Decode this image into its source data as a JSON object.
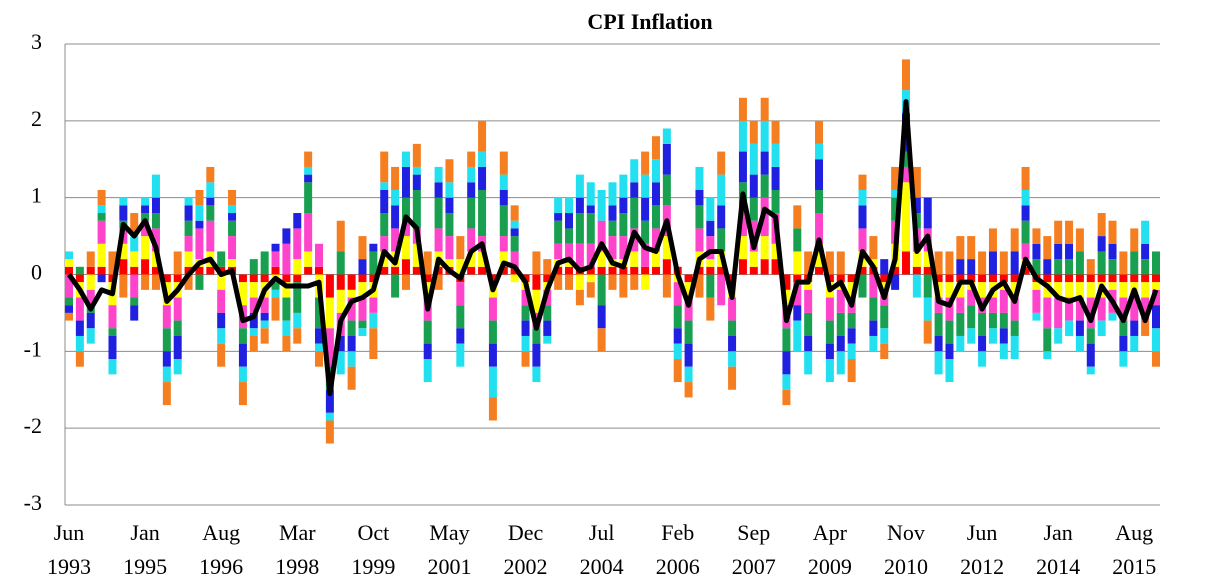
{
  "chart_data": {
    "type": "bar",
    "stacked": true,
    "title": "CPI Inflation",
    "categories": [
      "Jun 1993",
      null,
      null,
      null,
      null,
      null,
      null,
      "Jan 1995",
      null,
      null,
      null,
      null,
      null,
      null,
      "Aug 1996",
      null,
      null,
      null,
      null,
      null,
      null,
      "Mar 1998",
      null,
      null,
      null,
      null,
      null,
      null,
      "Oct 1999",
      null,
      null,
      null,
      null,
      null,
      null,
      "May 2001",
      null,
      null,
      null,
      null,
      null,
      null,
      "Dec 2002",
      null,
      null,
      null,
      null,
      null,
      null,
      "Jul 2004",
      null,
      null,
      null,
      null,
      null,
      null,
      "Feb 2006",
      null,
      null,
      null,
      null,
      null,
      null,
      "Sep 2007",
      null,
      null,
      null,
      null,
      null,
      null,
      "Apr 2009",
      null,
      null,
      null,
      null,
      null,
      null,
      "Nov 2010",
      null,
      null,
      null,
      null,
      null,
      null,
      "Jun 2012",
      null,
      null,
      null,
      null,
      null,
      null,
      "Jan 2014",
      null,
      null,
      null,
      null,
      null,
      null,
      "Aug 2015",
      null,
      null
    ],
    "ylim": [
      -3,
      3
    ],
    "yticks": [
      -3,
      -2,
      -1,
      0,
      1,
      2,
      3
    ],
    "grid": true,
    "series": [
      {
        "color": "#ff0000",
        "values": [
          0.1,
          -0.1,
          0.1,
          0.1,
          -0.1,
          0.2,
          0.1,
          0.2,
          0.1,
          -0.1,
          -0.1,
          0.1,
          0.1,
          0.1,
          0.1,
          0.1,
          -0.1,
          -0.1,
          -0.1,
          0.1,
          -0.1,
          -0.1,
          0.1,
          0.1,
          -0.3,
          -0.2,
          -0.2,
          -0.1,
          -0.1,
          0.1,
          0.1,
          0.2,
          0.1,
          -0.1,
          0.1,
          0.1,
          -0.1,
          0.1,
          0.1,
          -0.1,
          0.1,
          0.1,
          -0.1,
          -0.2,
          -0.1,
          0.1,
          0.1,
          0.1,
          0.1,
          0.1,
          0.1,
          0.1,
          0.1,
          0.1,
          0.1,
          0.2,
          0.1,
          -0.1,
          0.1,
          0.1,
          0.1,
          -0.1,
          0.2,
          0.1,
          0.2,
          0.2,
          -0.2,
          -0.1,
          -0.1,
          0.1,
          -0.1,
          -0.1,
          -0.1,
          0.1,
          0.1,
          -0.1,
          0.1,
          0.3,
          0.1,
          0.1,
          -0.1,
          -0.1,
          -0.1,
          -0.1,
          -0.1,
          -0.1,
          -0.1,
          -0.1,
          0.1,
          -0.1,
          -0.1,
          -0.1,
          -0.1,
          -0.1,
          -0.1,
          -0.1,
          -0.1,
          -0.1,
          -0.1,
          -0.1,
          -0.1
        ]
      },
      {
        "color": "#ffff00",
        "values": [
          0.1,
          -0.2,
          -0.2,
          0.3,
          -0.3,
          0.2,
          0.2,
          0.3,
          0.2,
          -0.3,
          -0.2,
          0.2,
          0.1,
          0.2,
          -0.2,
          0.1,
          -0.3,
          -0.2,
          -0.2,
          -0.1,
          -0.2,
          0.2,
          0.2,
          -0.3,
          -0.4,
          -0.3,
          -0.1,
          -0.2,
          -0.2,
          0.2,
          0.2,
          0.3,
          0.3,
          -0.2,
          0.2,
          0.1,
          0.2,
          0.2,
          0.2,
          -0.2,
          0.2,
          -0.1,
          -0.1,
          -0.3,
          -0.1,
          0.1,
          0.1,
          -0.2,
          -0.1,
          0.2,
          0.1,
          0.1,
          0.2,
          -0.2,
          0.2,
          0.3,
          -0.1,
          -0.2,
          0.2,
          0.1,
          0.2,
          -0.2,
          0.3,
          0.2,
          0.3,
          0.2,
          -0.2,
          0.3,
          -0.1,
          0.3,
          -0.2,
          -0.1,
          -0.2,
          0.2,
          0.1,
          -0.1,
          0.3,
          0.9,
          0.2,
          0.2,
          -0.2,
          -0.2,
          -0.2,
          -0.1,
          -0.2,
          -0.2,
          -0.1,
          -0.2,
          0.1,
          -0.1,
          -0.2,
          -0.2,
          -0.2,
          -0.2,
          -0.2,
          -0.2,
          -0.1,
          -0.2,
          -0.2,
          -0.2,
          -0.1
        ]
      },
      {
        "color": "#ff44cc",
        "values": [
          -0.3,
          -0.3,
          -0.2,
          0.3,
          -0.3,
          0.2,
          -0.3,
          0.2,
          0.3,
          -0.3,
          -0.3,
          0.2,
          0.4,
          0.4,
          -0.3,
          0.3,
          -0.3,
          -0.2,
          -0.2,
          0.2,
          0.4,
          0.4,
          0.5,
          0.3,
          -0.5,
          -0.3,
          -0.3,
          -0.3,
          -0.2,
          0.2,
          0.3,
          0.2,
          0.2,
          -0.3,
          0.3,
          0.3,
          -0.3,
          0.3,
          0.2,
          -0.3,
          0.2,
          0.2,
          -0.2,
          -0.2,
          -0.2,
          0.2,
          0.2,
          0.3,
          0.3,
          0.4,
          0.3,
          0.3,
          0.3,
          0.3,
          0.3,
          0.4,
          -0.3,
          -0.3,
          0.3,
          0.3,
          -0.4,
          -0.3,
          0.4,
          0.4,
          0.5,
          0.4,
          -0.3,
          -0.3,
          -0.3,
          0.4,
          -0.3,
          -0.3,
          -0.2,
          0.3,
          -0.3,
          -0.2,
          0.3,
          0.2,
          0.3,
          0.3,
          -0.2,
          -0.3,
          -0.2,
          -0.2,
          -0.2,
          -0.2,
          -0.3,
          -0.3,
          0.2,
          -0.3,
          -0.4,
          -0.4,
          -0.3,
          -0.3,
          -0.4,
          -0.3,
          -0.3,
          -0.3,
          -0.3,
          -0.3,
          -0.2
        ]
      },
      {
        "color": "#18a050",
        "values": [
          -0.1,
          0.1,
          -0.1,
          0.1,
          -0.1,
          0.1,
          -0.1,
          0.1,
          0.2,
          -0.3,
          -0.2,
          0.2,
          -0.2,
          0.2,
          0.2,
          0.2,
          -0.2,
          0.2,
          0.3,
          -0.1,
          -0.3,
          -0.4,
          0.4,
          -0.4,
          -0.3,
          0.3,
          -0.2,
          -0.1,
          0.3,
          0.3,
          -0.3,
          0.3,
          0.5,
          -0.3,
          0.4,
          0.3,
          -0.3,
          0.4,
          0.6,
          -0.3,
          0.4,
          0.2,
          -0.2,
          -0.2,
          -0.2,
          0.3,
          0.2,
          0.4,
          0.4,
          -0.4,
          0.2,
          0.3,
          0.4,
          0.3,
          0.3,
          0.4,
          -0.3,
          -0.3,
          0.3,
          -0.3,
          0.3,
          -0.2,
          0.3,
          0.3,
          0.3,
          0.3,
          -0.3,
          0.3,
          -0.3,
          0.3,
          -0.3,
          -0.3,
          -0.2,
          -0.3,
          -0.3,
          -0.3,
          0.3,
          0.2,
          0.2,
          -0.3,
          -0.3,
          -0.3,
          -0.3,
          -0.3,
          -0.3,
          -0.2,
          -0.2,
          -0.2,
          0.3,
          0.2,
          -0.3,
          0.2,
          0.2,
          0.3,
          -0.2,
          0.3,
          0.2,
          -0.2,
          0.3,
          0.2,
          0.3
        ]
      },
      {
        "color": "#2020e0",
        "values": [
          -0.1,
          -0.2,
          -0.2,
          -0.1,
          -0.3,
          0.2,
          -0.2,
          0.1,
          0.2,
          -0.2,
          -0.3,
          0.2,
          0.1,
          0.1,
          -0.2,
          0.1,
          -0.3,
          -0.2,
          -0.1,
          0.1,
          0.2,
          0.2,
          0.1,
          -0.2,
          -0.3,
          -0.2,
          -0.2,
          0.2,
          0.1,
          0.3,
          0.3,
          0.4,
          0.2,
          -0.2,
          0.2,
          0.2,
          -0.2,
          0.2,
          0.3,
          -0.3,
          0.2,
          0.1,
          -0.2,
          -0.3,
          -0.2,
          0.1,
          0.2,
          0.2,
          0.1,
          -0.3,
          0.2,
          0.2,
          0.2,
          0.3,
          0.3,
          0.4,
          -0.2,
          -0.3,
          0.2,
          0.2,
          0.3,
          -0.2,
          0.4,
          0.3,
          0.3,
          0.3,
          -0.3,
          -0.2,
          -0.2,
          0.4,
          -0.2,
          -0.2,
          -0.2,
          0.3,
          -0.2,
          0.2,
          -0.2,
          0.5,
          0.2,
          0.4,
          -0.2,
          -0.2,
          0.2,
          0.2,
          -0.2,
          0.3,
          -0.2,
          0.3,
          0.2,
          0.2,
          0.2,
          0.2,
          0.2,
          -0.2,
          -0.3,
          0.2,
          0.2,
          -0.2,
          -0.2,
          0.2,
          -0.3
        ]
      },
      {
        "color": "#22e0f0",
        "values": [
          0.1,
          -0.2,
          -0.2,
          0.1,
          -0.2,
          0.1,
          0.2,
          0.1,
          0.3,
          -0.2,
          -0.2,
          0.1,
          0.2,
          0.2,
          -0.2,
          0.1,
          -0.2,
          -0.1,
          -0.1,
          -0.1,
          -0.2,
          -0.2,
          0.1,
          -0.1,
          -0.1,
          -0.3,
          -0.2,
          -0.1,
          -0.2,
          0.1,
          0.2,
          0.2,
          0.1,
          -0.3,
          0.2,
          0.2,
          -0.3,
          0.2,
          0.2,
          -0.4,
          0.2,
          0.1,
          -0.2,
          -0.2,
          -0.1,
          0.2,
          0.2,
          0.3,
          0.3,
          0.4,
          0.3,
          0.3,
          0.3,
          0.3,
          0.3,
          0.2,
          -0.2,
          -0.2,
          0.3,
          0.3,
          0.4,
          -0.2,
          0.4,
          0.4,
          0.4,
          0.3,
          -0.2,
          -0.4,
          -0.3,
          0.2,
          -0.3,
          -0.3,
          -0.2,
          0.2,
          -0.2,
          -0.2,
          0.1,
          0.3,
          -0.3,
          -0.3,
          -0.3,
          -0.3,
          -0.2,
          -0.2,
          -0.2,
          -0.2,
          -0.2,
          -0.3,
          0.2,
          -0.1,
          -0.1,
          -0.2,
          -0.2,
          -0.2,
          -0.1,
          -0.2,
          -0.1,
          -0.2,
          -0.2,
          0.3,
          -0.3
        ]
      },
      {
        "color": "#f57f20",
        "values": [
          -0.1,
          -0.2,
          0.2,
          0.2,
          0.3,
          -0.3,
          0.3,
          -0.2,
          -0.2,
          -0.3,
          0.3,
          -0.2,
          0.2,
          0.2,
          -0.3,
          0.2,
          -0.3,
          -0.2,
          -0.2,
          -0.3,
          -0.2,
          -0.2,
          0.2,
          -0.2,
          -0.3,
          0.4,
          -0.3,
          0.3,
          -0.4,
          0.4,
          0.3,
          -0.2,
          0.3,
          0.3,
          -0.2,
          0.3,
          0.3,
          0.2,
          0.4,
          -0.3,
          0.3,
          0.2,
          -0.2,
          0.3,
          0.2,
          -0.2,
          -0.2,
          -0.2,
          -0.2,
          -0.3,
          -0.2,
          -0.3,
          -0.2,
          0.3,
          0.3,
          -0.3,
          -0.3,
          -0.2,
          -0.3,
          -0.3,
          0.3,
          -0.3,
          0.3,
          0.3,
          0.3,
          0.3,
          -0.2,
          0.3,
          0.3,
          0.3,
          0.3,
          0.3,
          -0.3,
          0.2,
          0.3,
          -0.2,
          0.3,
          0.4,
          0.4,
          -0.3,
          0.3,
          0.3,
          0.3,
          0.3,
          0.3,
          0.3,
          0.3,
          0.3,
          0.3,
          0.2,
          0.3,
          0.3,
          0.3,
          0.3,
          0.2,
          0.3,
          0.3,
          0.3,
          0.3,
          -0.2,
          -0.2
        ]
      },
      {
        "type": "line",
        "color": "#000000",
        "values": [
          0,
          -0.2,
          -0.45,
          -0.2,
          -0.25,
          0.65,
          0.5,
          0.7,
          0.35,
          -0.35,
          -0.2,
          0,
          0.15,
          0.2,
          0,
          0.05,
          -0.6,
          -0.55,
          -0.2,
          -0.05,
          -0.15,
          -0.15,
          -0.15,
          -0.1,
          -1.55,
          -0.6,
          -0.35,
          -0.3,
          -0.2,
          0.3,
          0.15,
          0.75,
          0.6,
          -0.45,
          0.2,
          0.05,
          -0.05,
          0.3,
          0.4,
          -0.2,
          0.15,
          0.1,
          -0.1,
          -0.7,
          -0.2,
          0.15,
          0.2,
          0.05,
          0.1,
          0.4,
          0.15,
          0.1,
          0.55,
          0.35,
          0.3,
          0.7,
          0,
          -0.4,
          0.2,
          0.3,
          0.3,
          -0.3,
          1.05,
          0.35,
          0.85,
          0.75,
          -0.6,
          -0.1,
          -0.1,
          0.45,
          -0.2,
          -0.1,
          -0.4,
          0.3,
          0.1,
          -0.3,
          0.2,
          2.25,
          0.3,
          0.5,
          -0.35,
          -0.4,
          -0.1,
          -0.1,
          -0.45,
          -0.2,
          -0.1,
          -0.35,
          0.2,
          -0.05,
          -0.15,
          -0.3,
          -0.35,
          -0.3,
          -0.6,
          -0.15,
          -0.35,
          -0.6,
          -0.2,
          -0.6,
          -0.2
        ]
      }
    ]
  }
}
